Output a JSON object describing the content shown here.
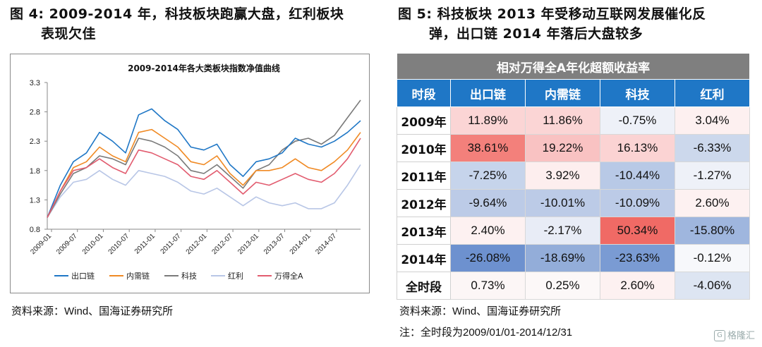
{
  "left_title": {
    "prefix": "图 4:",
    "line1": "2009-2014 年，科技板块跑赢大盘，红利板块",
    "line2": "表现欠佳"
  },
  "right_title": {
    "prefix": "图 5:",
    "line1": "科技板块 2013 年受移动互联网发展催化反",
    "line2": "弹，出口链 2014 年落后大盘较多"
  },
  "chart_data": [
    {
      "type": "line",
      "title": "2009-2014年各大类板块指数净值曲线",
      "xlabel": "",
      "ylabel": "",
      "ylim": [
        0.8,
        3.3
      ],
      "yticks": [
        "3.3",
        "2.8",
        "2.3",
        "1.8",
        "1.3",
        "0.8"
      ],
      "xticks": [
        "2009-01",
        "2009-07",
        "2010-01",
        "2010-07",
        "2011-01",
        "2011-07",
        "2012-01",
        "2012-07",
        "2013-01",
        "2013-07",
        "2014-01",
        "2014-07"
      ],
      "x": [
        "2009-01",
        "2009-04",
        "2009-07",
        "2009-10",
        "2010-01",
        "2010-04",
        "2010-07",
        "2010-10",
        "2011-01",
        "2011-04",
        "2011-07",
        "2011-10",
        "2012-01",
        "2012-04",
        "2012-07",
        "2012-10",
        "2013-01",
        "2013-04",
        "2013-07",
        "2013-10",
        "2014-01",
        "2014-04",
        "2014-07",
        "2014-10",
        "2014-12"
      ],
      "series": [
        {
          "name": "出口链",
          "color": "#1f77c6",
          "values": [
            1.0,
            1.55,
            1.95,
            2.1,
            2.45,
            2.3,
            2.1,
            2.75,
            2.85,
            2.65,
            2.5,
            2.2,
            2.15,
            2.25,
            1.9,
            1.7,
            1.95,
            2.0,
            2.1,
            2.35,
            2.25,
            2.2,
            2.3,
            2.45,
            2.65
          ]
        },
        {
          "name": "内需链",
          "color": "#f08a24",
          "values": [
            1.0,
            1.45,
            1.85,
            1.95,
            2.2,
            2.05,
            1.95,
            2.45,
            2.5,
            2.35,
            2.2,
            1.95,
            1.9,
            2.05,
            1.75,
            1.55,
            1.8,
            1.8,
            1.85,
            2.0,
            1.85,
            1.8,
            1.95,
            2.15,
            2.45
          ]
        },
        {
          "name": "科技",
          "color": "#7a7a7a",
          "values": [
            1.0,
            1.4,
            1.75,
            1.85,
            2.05,
            2.0,
            1.9,
            2.35,
            2.3,
            2.2,
            2.05,
            1.8,
            1.75,
            1.9,
            1.7,
            1.5,
            1.8,
            1.9,
            2.15,
            2.3,
            2.35,
            2.25,
            2.4,
            2.7,
            3.0
          ]
        },
        {
          "name": "红利",
          "color": "#b8c6e6",
          "values": [
            1.0,
            1.35,
            1.6,
            1.65,
            1.8,
            1.65,
            1.55,
            1.8,
            1.75,
            1.7,
            1.6,
            1.45,
            1.4,
            1.5,
            1.35,
            1.2,
            1.35,
            1.25,
            1.2,
            1.25,
            1.15,
            1.15,
            1.25,
            1.55,
            1.9
          ]
        },
        {
          "name": "万得全A",
          "color": "#e25c6f",
          "values": [
            1.0,
            1.45,
            1.8,
            1.85,
            2.0,
            1.85,
            1.75,
            2.15,
            2.1,
            2.0,
            1.9,
            1.7,
            1.65,
            1.8,
            1.6,
            1.4,
            1.6,
            1.55,
            1.65,
            1.75,
            1.65,
            1.6,
            1.75,
            2.0,
            2.35
          ]
        }
      ]
    },
    {
      "type": "table",
      "title": "相对万得全A年化超额收益率",
      "columns": [
        "时段",
        "出口链",
        "内需链",
        "科技",
        "红利"
      ],
      "rows": [
        {
          "label": "2009年",
          "values": [
            "11.89%",
            "11.86%",
            "-0.75%",
            "3.04%"
          ],
          "colors": [
            "#fbd5d5",
            "#fbd5d5",
            "#eef1f8",
            "#fdf0f0"
          ]
        },
        {
          "label": "2010年",
          "values": [
            "38.61%",
            "19.22%",
            "16.13%",
            "-6.33%"
          ],
          "colors": [
            "#f3807b",
            "#f9c2c2",
            "#fbd3d3",
            "#ccd8ec"
          ]
        },
        {
          "label": "2011年",
          "values": [
            "-7.25%",
            "3.92%",
            "-10.44%",
            "-1.27%"
          ],
          "colors": [
            "#c6d4eb",
            "#fdeeee",
            "#b8c9e6",
            "#eef1f8"
          ]
        },
        {
          "label": "2012年",
          "values": [
            "-9.64%",
            "-10.01%",
            "-10.09%",
            "2.60%"
          ],
          "colors": [
            "#bccbe7",
            "#bccbe7",
            "#bccbe7",
            "#fdf1f1"
          ]
        },
        {
          "label": "2013年",
          "values": [
            "2.40%",
            "-2.17%",
            "50.34%",
            "-15.80%"
          ],
          "colors": [
            "#fdf1f1",
            "#e8ecf6",
            "#f06a65",
            "#9fb6de"
          ]
        },
        {
          "label": "2014年",
          "values": [
            "-26.08%",
            "-18.69%",
            "-23.63%",
            "-0.12%"
          ],
          "colors": [
            "#6d91cf",
            "#93add9",
            "#7a9bd3",
            "#f7f8fb"
          ]
        },
        {
          "label": "全时段",
          "values": [
            "0.73%",
            "0.25%",
            "2.60%",
            "-4.06%"
          ],
          "colors": [
            "#fcf6f6",
            "#fcf8f8",
            "#fdf1f1",
            "#dde5f2"
          ]
        }
      ]
    }
  ],
  "left_source": "资料来源：Wind、国海证券研究所",
  "right_source": "资料来源：Wind、国海证券研究所",
  "right_note": "注：全时段为2009/01/01-2014/12/31",
  "watermark": "格隆汇"
}
